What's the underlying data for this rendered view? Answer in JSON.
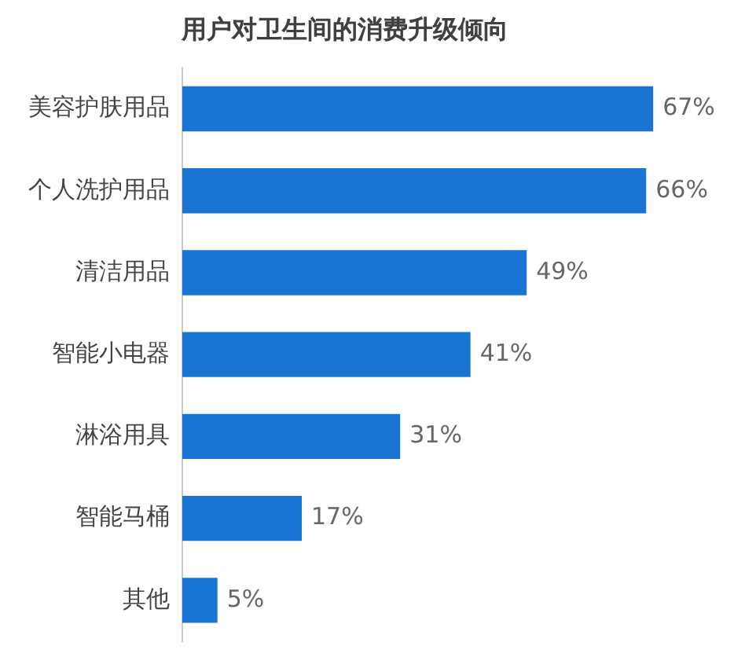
{
  "chart_data": {
    "type": "bar",
    "orientation": "horizontal",
    "title": "用户对卫生间的消费升级倾向",
    "categories": [
      "美容护肤用品",
      "个人洗护用品",
      "清洁用品",
      "智能小电器",
      "淋浴用具",
      "智能马桶",
      "其他"
    ],
    "values": [
      67,
      66,
      49,
      41,
      31,
      17,
      5
    ],
    "value_labels": [
      "67%",
      "66%",
      "49%",
      "41%",
      "31%",
      "17%",
      "5%"
    ],
    "color": "#1a75d2",
    "tick_labels": "y",
    "legend": false
  }
}
